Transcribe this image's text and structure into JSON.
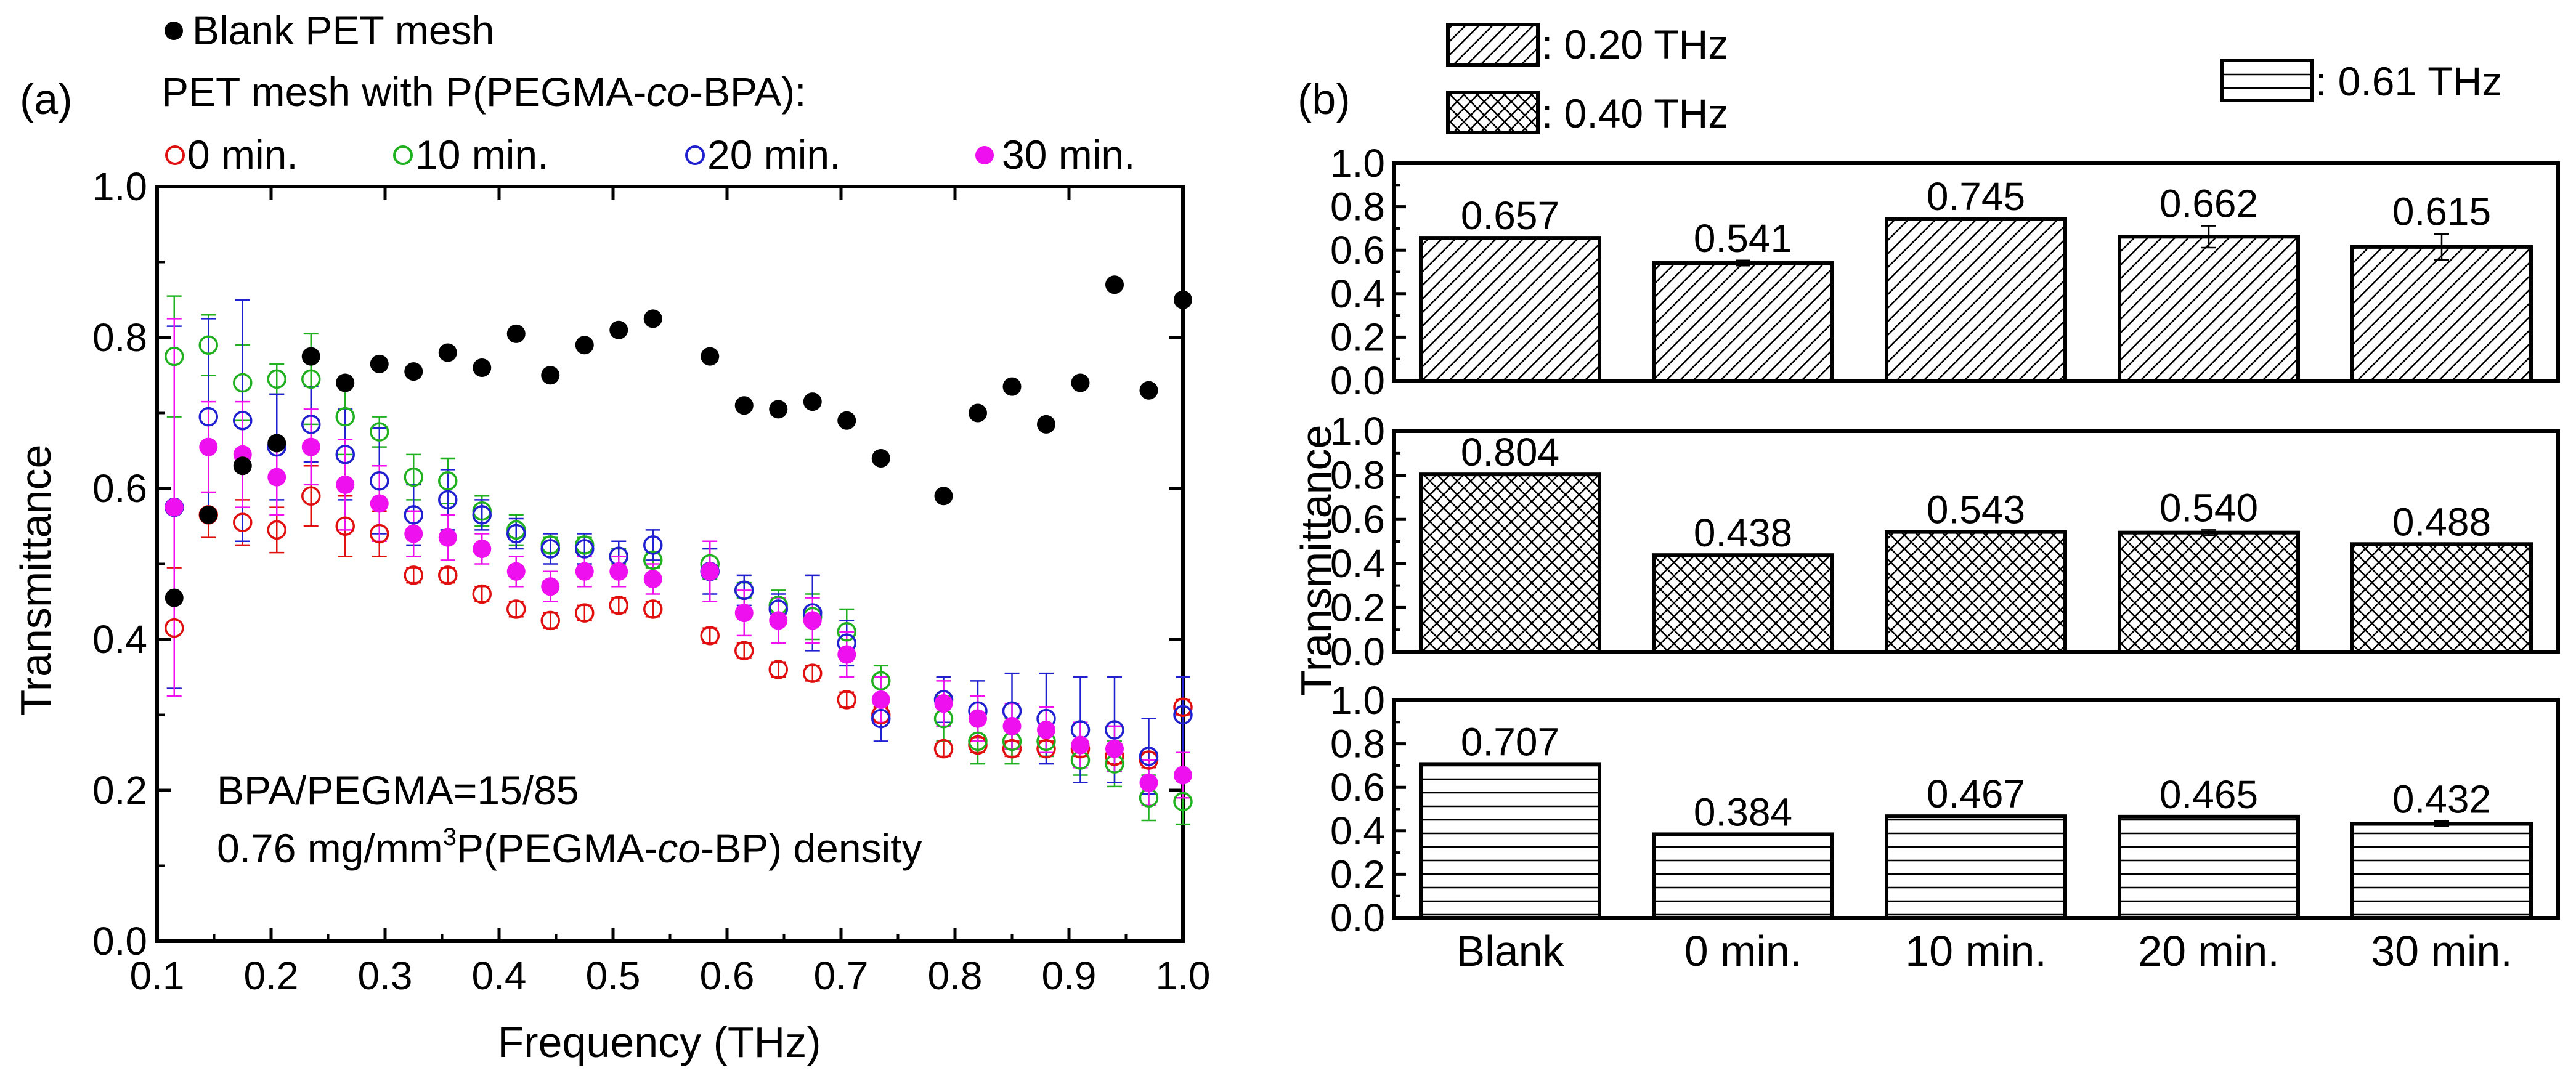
{
  "chart_data": [
    {
      "type": "scatter",
      "panel_label": "(a)",
      "xlabel": "Frequency (THz)",
      "ylabel": "Transmittance",
      "xlim": [
        0.1,
        1.0
      ],
      "ylim": [
        0.0,
        1.0
      ],
      "xticks": [
        "0.1",
        "0.2",
        "0.3",
        "0.4",
        "0.5",
        "0.6",
        "0.7",
        "0.8",
        "0.9",
        "1.0"
      ],
      "yticks": [
        "0.0",
        "0.2",
        "0.4",
        "0.6",
        "0.8",
        "1.0"
      ],
      "legend": {
        "blank_label": "Blank PET mesh",
        "group_title_pre": "PET mesh with P(PEGMA-",
        "group_title_co": "co",
        "group_title_post": "-BPA):",
        "entries": [
          "0 min.",
          "10 min.",
          "20 min.",
          "30 min."
        ]
      },
      "annotation": {
        "line1": "BPA/PEGMA=15/85",
        "line2_pre": "0.76 mg/mm",
        "line2_sup": "3",
        "line2_mid": "P(PEGMA-",
        "line2_co": "co",
        "line2_post": "-BP) density"
      },
      "x": [
        0.115,
        0.145,
        0.175,
        0.205,
        0.235,
        0.265,
        0.295,
        0.325,
        0.355,
        0.385,
        0.415,
        0.445,
        0.475,
        0.505,
        0.535,
        0.585,
        0.615,
        0.645,
        0.675,
        0.705,
        0.735,
        0.79,
        0.82,
        0.85,
        0.88,
        0.91,
        0.94,
        0.97,
        1.0
      ],
      "series": [
        {
          "name": "Blank PET mesh",
          "color": "#000000",
          "marker": "filled",
          "values": [
            0.455,
            0.565,
            0.63,
            0.66,
            0.775,
            0.74,
            0.765,
            0.755,
            0.78,
            0.76,
            0.805,
            0.75,
            0.79,
            0.81,
            0.825,
            0.775,
            0.71,
            0.705,
            0.715,
            0.69,
            0.64,
            0.59,
            0.7,
            0.735,
            0.685,
            0.74,
            0.87,
            0.73,
            0.85
          ]
        },
        {
          "name": "0 min.",
          "color": "#e01010",
          "marker": "open",
          "values": [
            0.415,
            0.565,
            0.555,
            0.545,
            0.59,
            0.55,
            0.54,
            0.485,
            0.485,
            0.46,
            0.44,
            0.425,
            0.435,
            0.445,
            0.44,
            0.405,
            0.385,
            0.36,
            0.355,
            0.32,
            0.3,
            0.255,
            0.26,
            0.255,
            0.255,
            0.255,
            0.245,
            0.24,
            0.31
          ],
          "err": [
            0.08,
            0.03,
            0.03,
            0.03,
            0.04,
            0.04,
            0.03,
            0.01,
            0.01,
            0.01,
            0.01,
            0.01,
            0.01,
            0.01,
            0.01,
            0.01,
            0.01,
            0.01,
            0.01,
            0.01,
            0.01,
            0.01,
            0.01,
            0.01,
            0.01,
            0.01,
            0.01,
            0.01,
            0.01
          ]
        },
        {
          "name": "10 min.",
          "color": "#20b020",
          "marker": "open",
          "values": [
            0.775,
            0.79,
            0.74,
            0.745,
            0.745,
            0.695,
            0.675,
            0.615,
            0.61,
            0.57,
            0.545,
            0.525,
            0.525,
            0.51,
            0.505,
            0.5,
            0.465,
            0.445,
            0.43,
            0.41,
            0.345,
            0.295,
            0.265,
            0.265,
            0.265,
            0.24,
            0.235,
            0.19,
            0.185
          ],
          "err": [
            0.08,
            0.04,
            0.05,
            0.02,
            0.06,
            0.05,
            0.02,
            0.03,
            0.03,
            0.02,
            0.02,
            0.01,
            0.01,
            0.01,
            0.01,
            0.02,
            0.01,
            0.02,
            0.03,
            0.03,
            0.02,
            0.03,
            0.03,
            0.03,
            0.02,
            0.02,
            0.03,
            0.03,
            0.03
          ]
        },
        {
          "name": "20 min.",
          "color": "#2020d0",
          "marker": "open",
          "values": [
            0.575,
            0.695,
            0.69,
            0.655,
            0.685,
            0.645,
            0.61,
            0.565,
            0.585,
            0.565,
            0.54,
            0.52,
            0.52,
            0.51,
            0.525,
            0.49,
            0.465,
            0.44,
            0.435,
            0.395,
            0.295,
            0.32,
            0.305,
            0.305,
            0.295,
            0.28,
            0.28,
            0.245,
            0.3
          ],
          "err": [
            0.24,
            0.13,
            0.16,
            0.07,
            0.05,
            0.06,
            0.07,
            0.04,
            0.04,
            0.02,
            0.02,
            0.02,
            0.02,
            0.02,
            0.02,
            0.03,
            0.02,
            0.02,
            0.05,
            0.03,
            0.03,
            0.03,
            0.04,
            0.05,
            0.06,
            0.07,
            0.07,
            0.05,
            0.05
          ]
        },
        {
          "name": "30 min.",
          "color": "#ee10ee",
          "marker": "filled",
          "values": [
            0.575,
            0.655,
            0.645,
            0.615,
            0.655,
            0.605,
            0.58,
            0.54,
            0.535,
            0.52,
            0.49,
            0.47,
            0.49,
            0.49,
            0.48,
            0.49,
            0.435,
            0.425,
            0.425,
            0.38,
            0.32,
            0.315,
            0.295,
            0.285,
            0.28,
            0.26,
            0.255,
            0.21,
            0.22
          ],
          "err": [
            0.25,
            0.06,
            0.07,
            0.05,
            0.05,
            0.06,
            0.05,
            0.03,
            0.03,
            0.02,
            0.02,
            0.02,
            0.02,
            0.02,
            0.02,
            0.04,
            0.03,
            0.03,
            0.03,
            0.03,
            0.03,
            0.03,
            0.03,
            0.03,
            0.03,
            0.03,
            0.03,
            0.03,
            0.03
          ]
        }
      ]
    },
    {
      "type": "bar",
      "panel_label": "(b)",
      "ylabel": "Transmittance",
      "categories": [
        "Blank",
        "0 min.",
        "10 min.",
        "20 min.",
        "30 min."
      ],
      "ylim": [
        0.0,
        1.0
      ],
      "yticks": [
        "0.0",
        "0.2",
        "0.4",
        "0.6",
        "0.8",
        "1.0"
      ],
      "legend": {
        "f020": ": 0.20 THz",
        "f040": ": 0.40 THz",
        "f061": ": 0.61 THz"
      },
      "panels": [
        {
          "name": "0.20 THz",
          "pattern": "diag",
          "values": [
            0.657,
            0.541,
            0.745,
            0.662,
            0.615
          ],
          "labels": [
            "0.657",
            "0.541",
            "0.745",
            "0.662",
            "0.615"
          ],
          "err": [
            0,
            0.012,
            0,
            0.05,
            0.06
          ]
        },
        {
          "name": "0.40 THz",
          "pattern": "cross",
          "values": [
            0.804,
            0.438,
            0.543,
            0.54,
            0.488
          ],
          "labels": [
            "0.804",
            "0.438",
            "0.543",
            "0.540",
            "0.488"
          ],
          "err": [
            0,
            0,
            0,
            0.012,
            0
          ]
        },
        {
          "name": "0.61 THz",
          "pattern": "horiz",
          "values": [
            0.707,
            0.384,
            0.467,
            0.465,
            0.432
          ],
          "labels": [
            "0.707",
            "0.384",
            "0.467",
            "0.465",
            "0.432"
          ],
          "err": [
            0,
            0,
            0,
            0,
            0.012
          ]
        }
      ]
    }
  ]
}
